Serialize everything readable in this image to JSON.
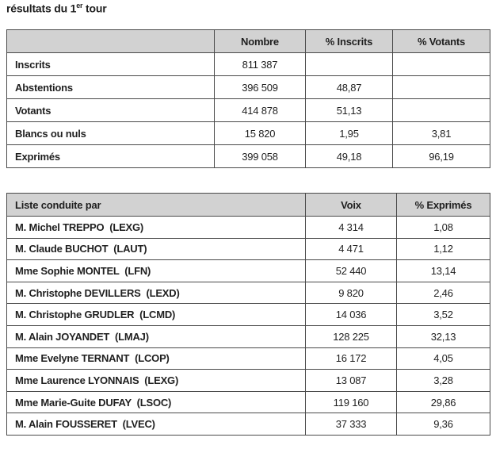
{
  "page": {
    "title_prefix": "résultats du 1",
    "title_sup": "er",
    "title_suffix": " tour"
  },
  "colors": {
    "header_bg": "#d2d2d2",
    "border": "#4a4a4a",
    "text": "#1f1f1f"
  },
  "summary_table": {
    "headers": [
      "",
      "Nombre",
      "% Inscrits",
      "% Votants"
    ],
    "rows": [
      {
        "label": "Inscrits",
        "nombre": "811 387",
        "pct_inscrits": "",
        "pct_votants": ""
      },
      {
        "label": "Abstentions",
        "nombre": "396 509",
        "pct_inscrits": "48,87",
        "pct_votants": ""
      },
      {
        "label": "Votants",
        "nombre": "414 878",
        "pct_inscrits": "51,13",
        "pct_votants": ""
      },
      {
        "label": "Blancs ou nuls",
        "nombre": "15 820",
        "pct_inscrits": "1,95",
        "pct_votants": "3,81"
      },
      {
        "label": "Exprimés",
        "nombre": "399 058",
        "pct_inscrits": "49,18",
        "pct_votants": "96,19"
      }
    ]
  },
  "results_table": {
    "headers": [
      "Liste conduite par",
      "Voix",
      "% Exprimés"
    ],
    "rows": [
      {
        "label": "M. Michel TREPPO  (LEXG)",
        "voix": "4 314",
        "pct_exprimes": "1,08"
      },
      {
        "label": "M. Claude BUCHOT  (LAUT)",
        "voix": "4 471",
        "pct_exprimes": "1,12"
      },
      {
        "label": "Mme Sophie MONTEL  (LFN)",
        "voix": "52 440",
        "pct_exprimes": "13,14"
      },
      {
        "label": "M. Christophe DEVILLERS  (LEXD)",
        "voix": "9 820",
        "pct_exprimes": "2,46"
      },
      {
        "label": "M. Christophe GRUDLER  (LCMD)",
        "voix": "14 036",
        "pct_exprimes": "3,52"
      },
      {
        "label": "M. Alain JOYANDET  (LMAJ)",
        "voix": "128 225",
        "pct_exprimes": "32,13"
      },
      {
        "label": "Mme Evelyne TERNANT  (LCOP)",
        "voix": "16 172",
        "pct_exprimes": "4,05"
      },
      {
        "label": "Mme Laurence LYONNAIS  (LEXG)",
        "voix": "13 087",
        "pct_exprimes": "3,28"
      },
      {
        "label": "Mme Marie-Guite DUFAY  (LSOC)",
        "voix": "119 160",
        "pct_exprimes": "29,86"
      },
      {
        "label": "M. Alain FOUSSERET  (LVEC)",
        "voix": "37 333",
        "pct_exprimes": "9,36"
      }
    ]
  }
}
